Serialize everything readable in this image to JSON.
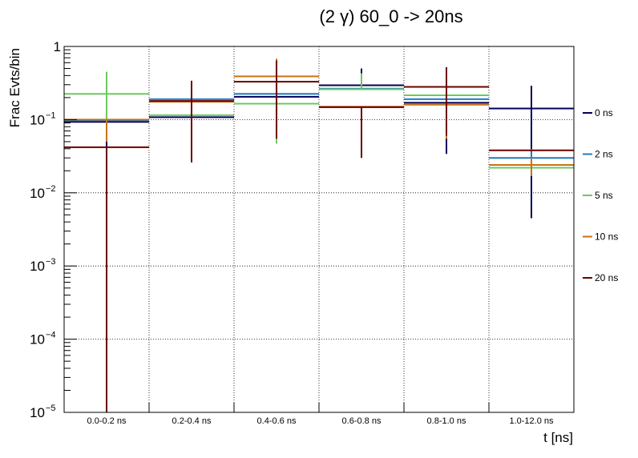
{
  "chart_data": {
    "type": "step",
    "title": "(2 γ) 60_0 -> 20ns",
    "xlabel": "t [ns]",
    "ylabel": "Frac Evts/bin",
    "yscale": "log",
    "ylim": [
      1e-05,
      1
    ],
    "grid": true,
    "legend_position": "right",
    "categories": [
      "0.0-0.2 ns",
      "0.2-0.4 ns",
      "0.4-0.6 ns",
      "0.6-0.8 ns",
      "0.8-1.0 ns",
      "1.0-12.0 ns"
    ],
    "y_ticks": [
      {
        "base": "1",
        "exp": ""
      },
      {
        "base": "10",
        "exp": "−1"
      },
      {
        "base": "10",
        "exp": "−2"
      },
      {
        "base": "10",
        "exp": "−3"
      },
      {
        "base": "10",
        "exp": "−4"
      },
      {
        "base": "10",
        "exp": "−5"
      }
    ],
    "series": [
      {
        "name": "0 ns",
        "color": "#00005a",
        "values": [
          0.093,
          0.108,
          0.205,
          0.295,
          0.17,
          0.142
        ],
        "err_low": [
          1e-05,
          0.108,
          0.205,
          0.295,
          0.034,
          0.0045
        ],
        "err_high": [
          0.093,
          0.108,
          0.205,
          0.5,
          0.17,
          0.29
        ]
      },
      {
        "name": "2 ns",
        "color": "#1f7bc2",
        "values": [
          0.097,
          0.19,
          0.225,
          0.265,
          0.19,
          0.03
        ],
        "err_low": [
          0.097,
          0.19,
          0.225,
          0.265,
          0.19,
          0.017
        ],
        "err_high": [
          0.097,
          0.19,
          0.225,
          0.265,
          0.19,
          0.04
        ]
      },
      {
        "name": "5 ns",
        "color": "#6dc95c",
        "values": [
          0.225,
          0.115,
          0.165,
          0.26,
          0.215,
          0.022
        ],
        "err_low": [
          0.1,
          0.115,
          0.047,
          0.26,
          0.215,
          0.022
        ],
        "err_high": [
          0.45,
          0.115,
          0.165,
          0.43,
          0.215,
          0.022
        ]
      },
      {
        "name": "10 ns",
        "color": "#c97214",
        "values": [
          0.1,
          0.175,
          0.39,
          0.15,
          0.16,
          0.024
        ],
        "err_low": [
          0.05,
          0.175,
          0.39,
          0.15,
          0.055,
          0.017
        ],
        "err_high": [
          0.1,
          0.175,
          0.68,
          0.15,
          0.16,
          0.03
        ]
      },
      {
        "name": "20 ns",
        "color": "#6b0000",
        "values": [
          0.042,
          0.18,
          0.33,
          0.148,
          0.28,
          0.038
        ],
        "err_low": [
          1e-05,
          0.026,
          0.055,
          0.03,
          0.06,
          0.038
        ],
        "err_high": [
          0.042,
          0.34,
          0.64,
          0.148,
          0.52,
          0.038
        ]
      }
    ]
  }
}
